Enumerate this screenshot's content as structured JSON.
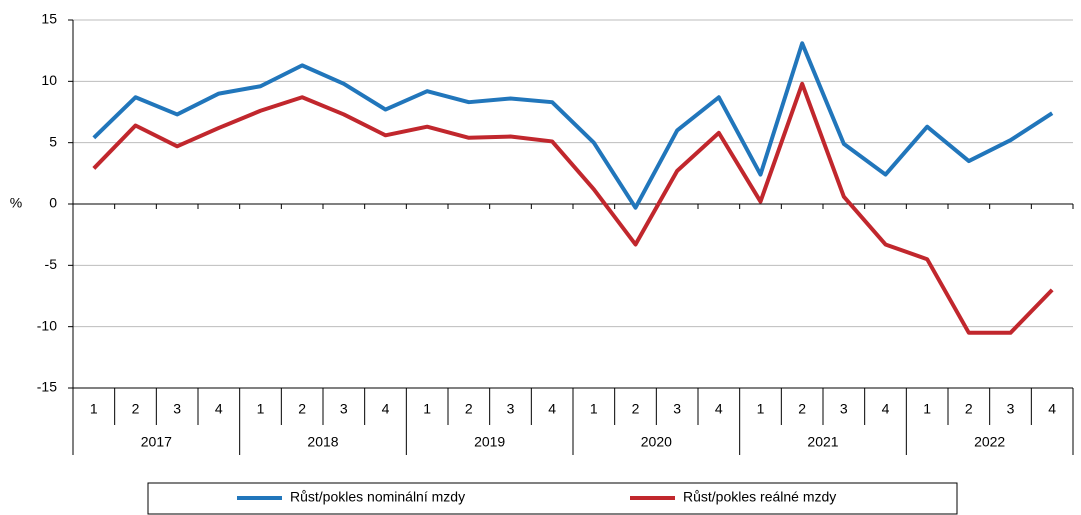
{
  "chart_data": {
    "type": "line",
    "y_label": "%",
    "categories": [
      "1",
      "2",
      "3",
      "4",
      "1",
      "2",
      "3",
      "4",
      "1",
      "2",
      "3",
      "4",
      "1",
      "2",
      "3",
      "4",
      "1",
      "2",
      "3",
      "4",
      "1",
      "2",
      "3",
      "4"
    ],
    "groups": [
      "2017",
      "2018",
      "2019",
      "2020",
      "2021",
      "2022"
    ],
    "series": [
      {
        "name": "Růst/pokles nominální mzdy",
        "color": "#2176bb",
        "values": [
          5.4,
          8.7,
          7.3,
          9.0,
          9.6,
          11.3,
          9.8,
          7.7,
          9.2,
          8.3,
          8.6,
          8.3,
          5.0,
          -0.3,
          6.0,
          8.7,
          2.4,
          13.1,
          4.9,
          2.4,
          6.3,
          3.5,
          5.2,
          7.4
        ]
      },
      {
        "name": "Růst/pokles reálné mzdy",
        "color": "#c1272d",
        "values": [
          2.9,
          6.4,
          4.7,
          6.2,
          7.6,
          8.7,
          7.3,
          5.6,
          6.3,
          5.4,
          5.5,
          5.1,
          1.2,
          -3.3,
          2.7,
          5.8,
          0.2,
          9.8,
          0.6,
          -3.3,
          -4.5,
          -10.5,
          -10.5,
          -7.0
        ]
      }
    ],
    "ylim": [
      -15,
      15
    ],
    "yticks": [
      -15,
      -10,
      -5,
      0,
      5,
      10,
      15
    ],
    "grid": true
  }
}
